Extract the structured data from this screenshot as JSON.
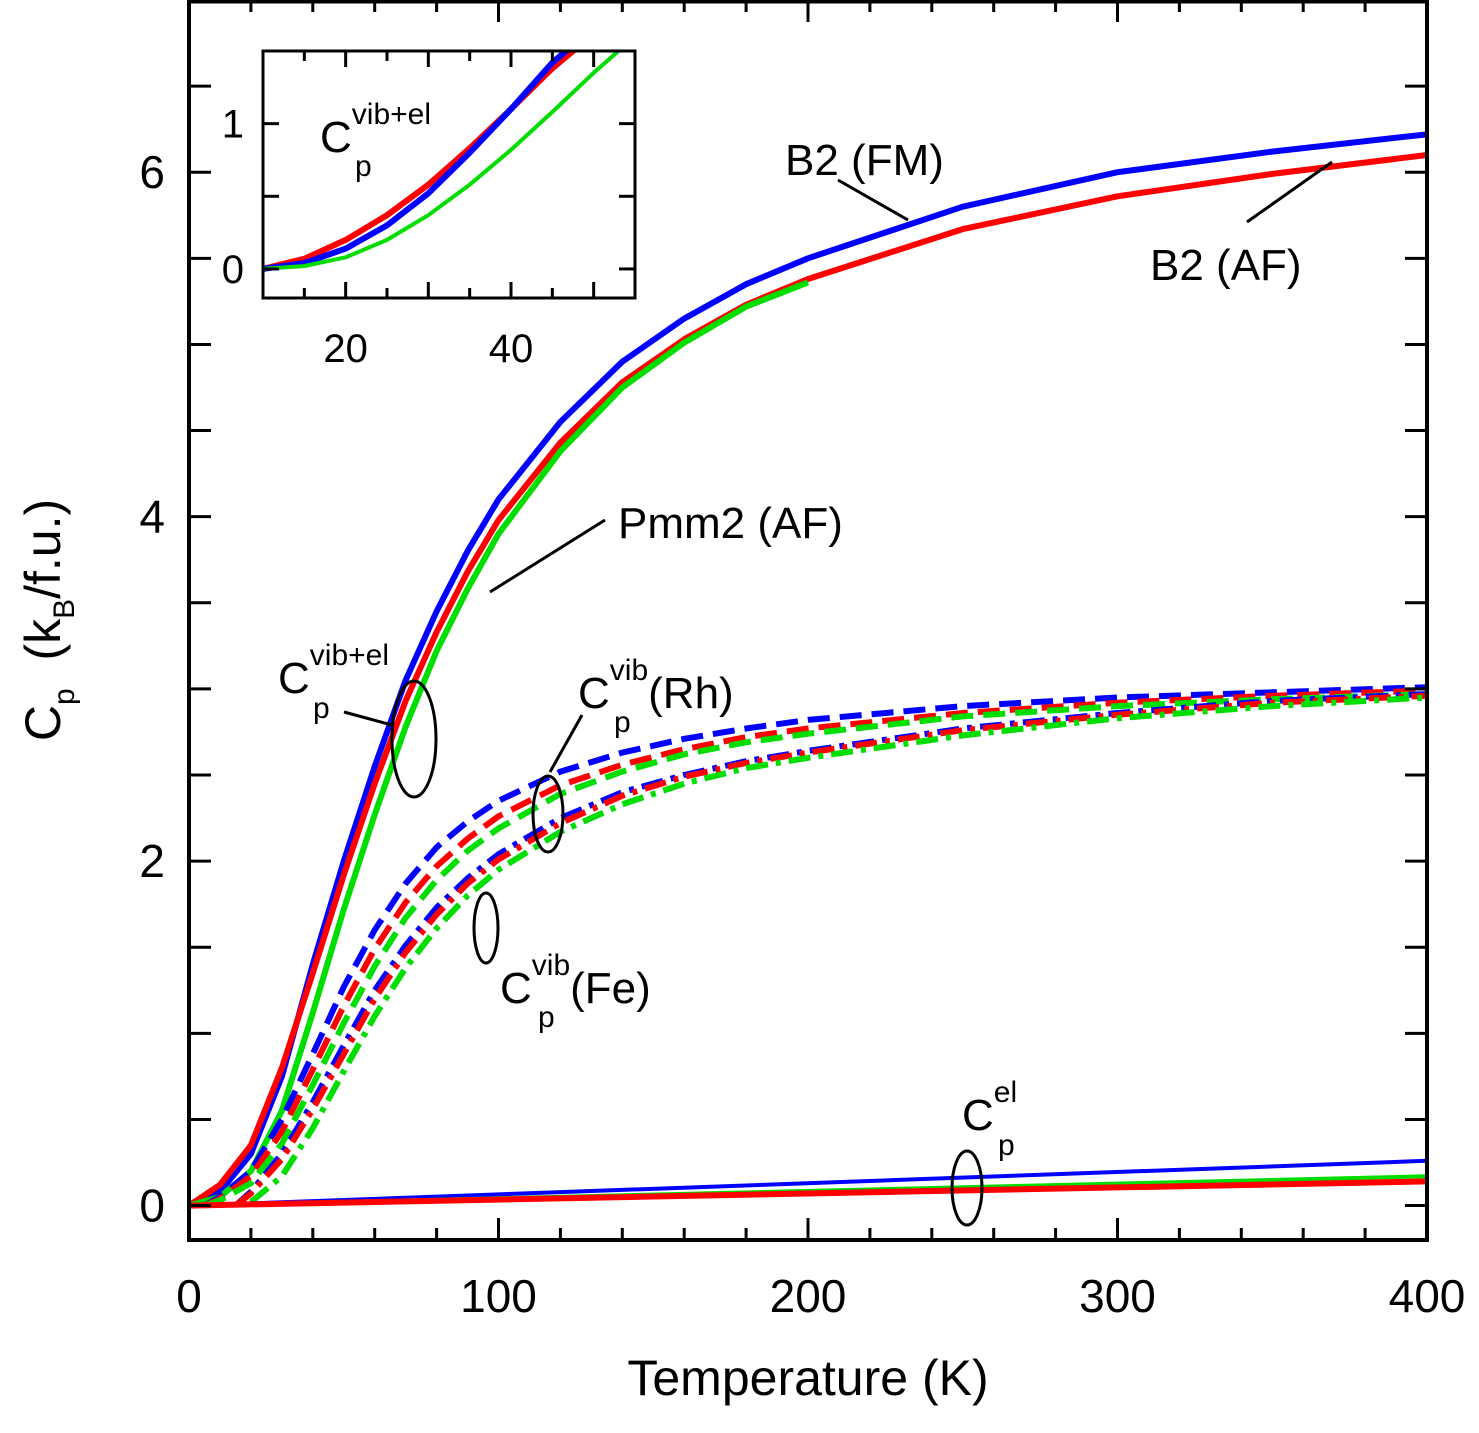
{
  "chart_data": [
    {
      "type": "line",
      "xlabel": "Temperature  (K)",
      "ylabel": {
        "main": "C",
        "sub1": "p",
        "open": "  (k",
        "sub2": "B",
        "rest": "/f.u.)"
      },
      "xlim": [
        0,
        400
      ],
      "ylim": [
        -0.2,
        7.0
      ],
      "xticks": [
        0,
        100,
        200,
        300,
        400
      ],
      "yticks": [
        0,
        2,
        4,
        6
      ],
      "grid": false,
      "legend": "none",
      "colors": {
        "B2 (FM)": "#0000ff",
        "B2 (AF)": "#ff0000",
        "Pmm2 (AF)": "#00dd00"
      },
      "series": [
        {
          "group": "vib+el",
          "structure": "B2 (FM)",
          "color": "#0000ff",
          "style": "solid",
          "x": [
            0,
            10,
            20,
            30,
            40,
            50,
            60,
            70,
            80,
            90,
            100,
            120,
            140,
            160,
            180,
            200,
            250,
            300,
            350,
            400
          ],
          "y": [
            0,
            0.08,
            0.3,
            0.75,
            1.4,
            2.0,
            2.55,
            3.05,
            3.45,
            3.8,
            4.1,
            4.55,
            4.9,
            5.15,
            5.35,
            5.5,
            5.8,
            6.0,
            6.12,
            6.22
          ]
        },
        {
          "group": "vib+el",
          "structure": "B2 (AF)",
          "color": "#ff0000",
          "style": "solid",
          "x": [
            0,
            10,
            20,
            30,
            40,
            50,
            60,
            70,
            80,
            90,
            100,
            120,
            140,
            160,
            180,
            200,
            250,
            300,
            350,
            400
          ],
          "y": [
            0,
            0.12,
            0.35,
            0.8,
            1.35,
            1.92,
            2.45,
            2.93,
            3.33,
            3.68,
            3.98,
            4.43,
            4.78,
            5.03,
            5.23,
            5.38,
            5.67,
            5.86,
            5.99,
            6.1
          ]
        },
        {
          "group": "vib+el",
          "structure": "Pmm2 (AF)",
          "color": "#00dd00",
          "style": "solid",
          "x": [
            0,
            10,
            20,
            30,
            40,
            50,
            60,
            70,
            80,
            90,
            100,
            120,
            140,
            160,
            180,
            200
          ],
          "y": [
            0,
            0.05,
            0.2,
            0.55,
            1.12,
            1.72,
            2.27,
            2.78,
            3.22,
            3.58,
            3.9,
            4.38,
            4.75,
            5.01,
            5.22,
            5.36
          ]
        },
        {
          "group": "vib (Rh)",
          "structure": "B2 (FM)",
          "color": "#0000ff",
          "style": "dashed",
          "x": [
            5,
            10,
            20,
            30,
            40,
            50,
            60,
            70,
            80,
            90,
            100,
            120,
            140,
            160,
            180,
            200,
            250,
            300,
            350,
            400
          ],
          "y": [
            0,
            0.05,
            0.2,
            0.5,
            0.88,
            1.27,
            1.6,
            1.87,
            2.08,
            2.23,
            2.35,
            2.52,
            2.63,
            2.71,
            2.77,
            2.82,
            2.9,
            2.95,
            2.98,
            3.01
          ]
        },
        {
          "group": "vib (Rh)",
          "structure": "B2 (AF)",
          "color": "#ff0000",
          "style": "dashed",
          "x": [
            5,
            10,
            20,
            30,
            40,
            50,
            60,
            70,
            80,
            90,
            100,
            120,
            140,
            160,
            180,
            200,
            250,
            300,
            350,
            400
          ],
          "y": [
            0,
            0.04,
            0.17,
            0.43,
            0.79,
            1.16,
            1.49,
            1.76,
            1.97,
            2.13,
            2.26,
            2.44,
            2.56,
            2.65,
            2.72,
            2.77,
            2.86,
            2.92,
            2.96,
            2.99
          ]
        },
        {
          "group": "vib (Rh)",
          "structure": "Pmm2 (AF)",
          "color": "#00dd00",
          "style": "dashed",
          "x": [
            5,
            10,
            20,
            30,
            40,
            50,
            60,
            70,
            80,
            90,
            100,
            120,
            140,
            160,
            180,
            200,
            250,
            300,
            350,
            400
          ],
          "y": [
            0,
            0.03,
            0.13,
            0.36,
            0.7,
            1.06,
            1.39,
            1.67,
            1.89,
            2.06,
            2.19,
            2.39,
            2.52,
            2.62,
            2.69,
            2.74,
            2.84,
            2.9,
            2.94,
            2.97
          ]
        },
        {
          "group": "vib (Fe)",
          "structure": "B2 (FM)",
          "color": "#0000ff",
          "style": "dashdot",
          "x": [
            15,
            20,
            30,
            40,
            50,
            60,
            70,
            80,
            90,
            100,
            120,
            140,
            160,
            180,
            200,
            250,
            300,
            350,
            400
          ],
          "y": [
            0,
            0.08,
            0.3,
            0.6,
            0.93,
            1.25,
            1.51,
            1.73,
            1.9,
            2.04,
            2.25,
            2.4,
            2.5,
            2.58,
            2.64,
            2.77,
            2.86,
            2.93,
            2.97
          ]
        },
        {
          "group": "vib (Fe)",
          "structure": "B2 (AF)",
          "color": "#ff0000",
          "style": "dashdot",
          "x": [
            15,
            20,
            30,
            40,
            50,
            60,
            70,
            80,
            90,
            100,
            120,
            140,
            160,
            180,
            200,
            250,
            300,
            350,
            400
          ],
          "y": [
            0,
            0.07,
            0.27,
            0.56,
            0.88,
            1.2,
            1.47,
            1.69,
            1.87,
            2.01,
            2.22,
            2.38,
            2.49,
            2.57,
            2.63,
            2.76,
            2.85,
            2.92,
            2.96
          ]
        },
        {
          "group": "vib (Fe)",
          "structure": "Pmm2 (AF)",
          "color": "#00dd00",
          "style": "dashdot",
          "x": [
            20,
            30,
            40,
            50,
            60,
            70,
            80,
            90,
            100,
            120,
            140,
            160,
            180,
            200,
            250,
            300,
            350,
            400
          ],
          "y": [
            0.02,
            0.17,
            0.45,
            0.78,
            1.1,
            1.38,
            1.61,
            1.8,
            1.95,
            2.17,
            2.33,
            2.45,
            2.54,
            2.6,
            2.73,
            2.83,
            2.9,
            2.95
          ]
        },
        {
          "group": "el",
          "structure": "B2 (FM)",
          "color": "#0000ff",
          "style": "solid-thin",
          "x": [
            0,
            400
          ],
          "y": [
            0,
            0.26
          ]
        },
        {
          "group": "el",
          "structure": "Pmm2 (AF)",
          "color": "#00dd00",
          "style": "solid-thin",
          "x": [
            0,
            400
          ],
          "y": [
            0,
            0.17
          ]
        },
        {
          "group": "el",
          "structure": "B2 (AF)",
          "color": "#ff0000",
          "style": "solid",
          "x": [
            0,
            400
          ],
          "y": [
            0,
            0.14
          ]
        }
      ],
      "annotations": [
        {
          "id": "b2fm",
          "text": "B2 (FM)"
        },
        {
          "id": "b2af",
          "text": "B2 (AF)"
        },
        {
          "id": "pmm2",
          "text": "Pmm2 (AF)"
        },
        {
          "id": "cp_vibel",
          "base": "C",
          "sub": "p",
          "sup": "vib+el"
        },
        {
          "id": "cp_vibrh",
          "base": "C",
          "sub": "p",
          "sup": "vib",
          "suffix": "(Rh)"
        },
        {
          "id": "cp_vibfe",
          "base": "C",
          "sub": "p",
          "sup": "vib",
          "suffix": "(Fe)"
        },
        {
          "id": "cp_el",
          "base": "C",
          "sub": "p",
          "sup": "el"
        }
      ]
    },
    {
      "type": "line",
      "inset": true,
      "xlim": [
        10,
        55
      ],
      "ylim": [
        -0.2,
        1.5
      ],
      "xticks": [
        20,
        40
      ],
      "yticks": [
        0,
        1
      ],
      "grid": false,
      "label": {
        "base": "C",
        "sub": "p",
        "sup": "vib+el"
      },
      "series": [
        {
          "structure": "B2 (AF)",
          "color": "#ff0000",
          "x": [
            10,
            15,
            20,
            25,
            30,
            35,
            40,
            45,
            50
          ],
          "y": [
            0,
            0.07,
            0.2,
            0.37,
            0.58,
            0.83,
            1.1,
            1.38,
            1.62
          ]
        },
        {
          "structure": "B2 (FM)",
          "color": "#0000ff",
          "x": [
            10,
            15,
            20,
            25,
            30,
            35,
            40,
            45,
            50
          ],
          "y": [
            0,
            0.04,
            0.14,
            0.3,
            0.52,
            0.8,
            1.1,
            1.42,
            1.66
          ]
        },
        {
          "structure": "Pmm2 (AF)",
          "color": "#00dd00",
          "x": [
            10,
            15,
            20,
            25,
            30,
            35,
            40,
            45,
            50,
            55
          ],
          "y": [
            0,
            0.02,
            0.08,
            0.2,
            0.37,
            0.58,
            0.82,
            1.08,
            1.35,
            1.6
          ]
        }
      ]
    }
  ]
}
